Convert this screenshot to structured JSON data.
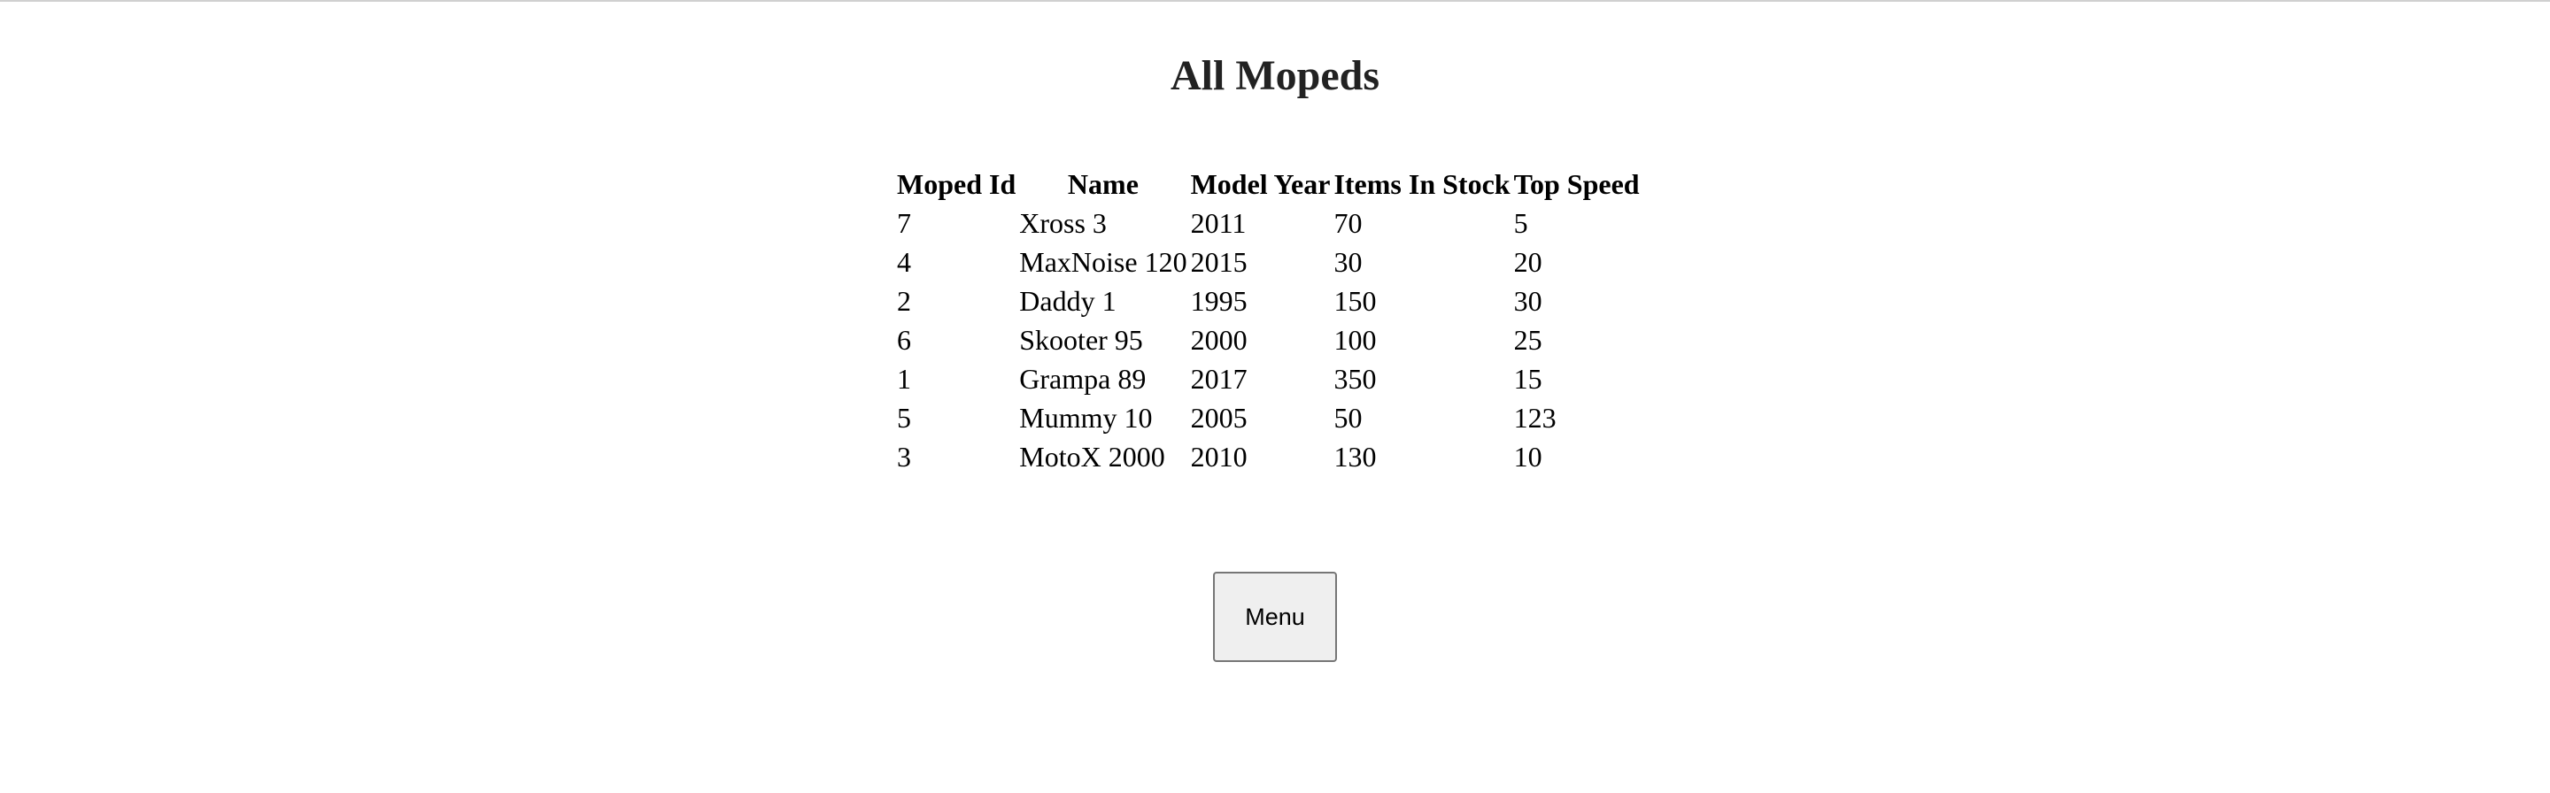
{
  "page": {
    "title": "All Mopeds"
  },
  "table": {
    "headers": [
      "Moped Id",
      "Name",
      "Model Year",
      "Items In Stock",
      "Top Speed"
    ],
    "rows": [
      [
        "7",
        "Xross 3",
        "2011",
        "70",
        "5"
      ],
      [
        "4",
        "MaxNoise 120",
        "2015",
        "30",
        "20"
      ],
      [
        "2",
        "Daddy 1",
        "1995",
        "150",
        "30"
      ],
      [
        "6",
        "Skooter 95",
        "2000",
        "100",
        "25"
      ],
      [
        "1",
        "Grampa 89",
        "2017",
        "350",
        "15"
      ],
      [
        "5",
        "Mummy 10",
        "2005",
        "50",
        "123"
      ],
      [
        "3",
        "MotoX 2000",
        "2010",
        "130",
        "10"
      ]
    ]
  },
  "menu_button": {
    "label": "Menu"
  }
}
